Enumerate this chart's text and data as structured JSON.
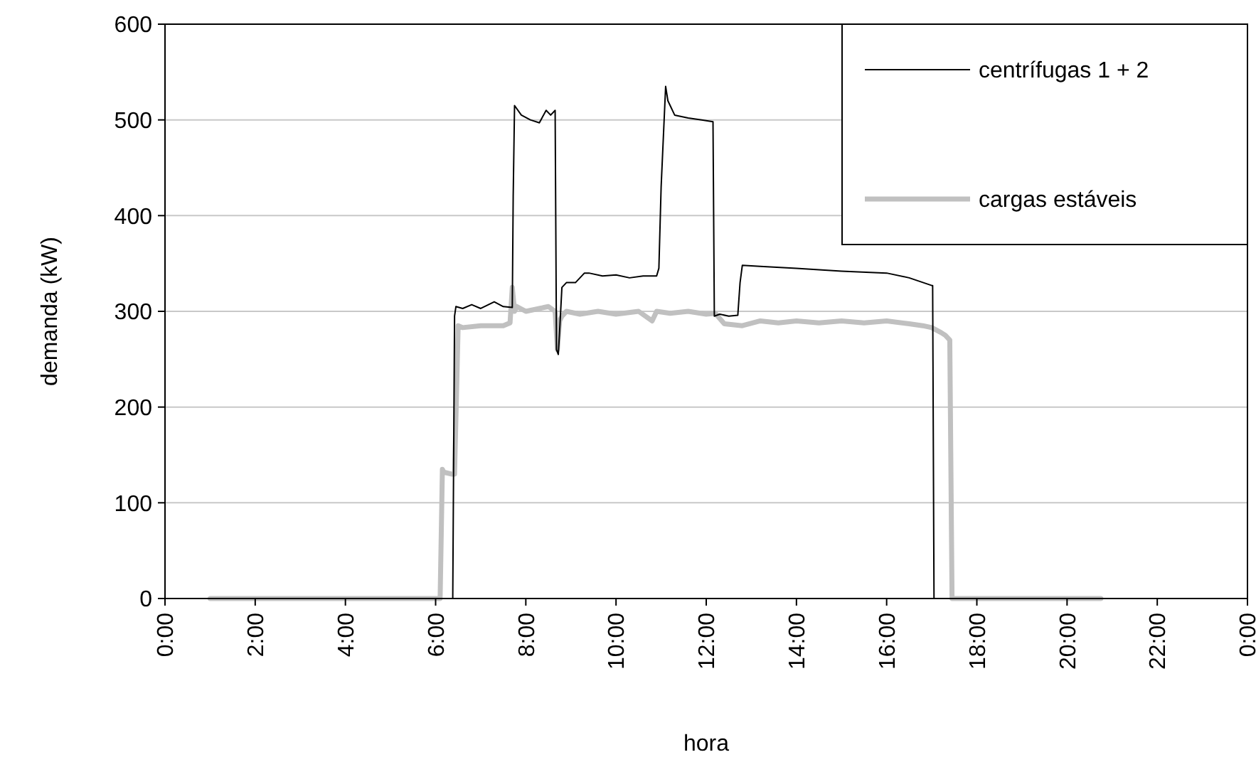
{
  "chart_data": {
    "type": "line",
    "xlabel": "hora",
    "ylabel": "demanda (kW)",
    "xlim": [
      0,
      24
    ],
    "xticks": [
      {
        "value": 0,
        "label": "0:00"
      },
      {
        "value": 2,
        "label": "2:00"
      },
      {
        "value": 4,
        "label": "4:00"
      },
      {
        "value": 6,
        "label": "6:00"
      },
      {
        "value": 8,
        "label": "8:00"
      },
      {
        "value": 10,
        "label": "10:00"
      },
      {
        "value": 12,
        "label": "12:00"
      },
      {
        "value": 14,
        "label": "14:00"
      },
      {
        "value": 16,
        "label": "16:00"
      },
      {
        "value": 18,
        "label": "18:00"
      },
      {
        "value": 20,
        "label": "20:00"
      },
      {
        "value": 22,
        "label": "22:00"
      },
      {
        "value": 24,
        "label": "0:00"
      }
    ],
    "ylim": [
      0,
      600
    ],
    "yticks": [
      0,
      100,
      200,
      300,
      400,
      500,
      600
    ],
    "grid": "y",
    "legend": "top right",
    "line_style": "solid",
    "series": [
      {
        "name": "centrífugas 1 + 2",
        "color": "#000000",
        "x": [
          1.0,
          6.38,
          6.42,
          6.45,
          6.6,
          6.8,
          7.0,
          7.3,
          7.5,
          7.7,
          7.72,
          7.75,
          7.9,
          8.1,
          8.3,
          8.45,
          8.55,
          8.65,
          8.68,
          8.72,
          8.75,
          8.8,
          8.9,
          9.1,
          9.3,
          9.4,
          9.7,
          10.0,
          10.3,
          10.6,
          10.9,
          10.95,
          11.0,
          11.1,
          11.15,
          11.3,
          11.6,
          11.9,
          12.15,
          12.18,
          12.3,
          12.5,
          12.7,
          12.75,
          12.8,
          13.2,
          14.0,
          15.0,
          16.0,
          16.5,
          17.0,
          17.02,
          17.05
        ],
        "values": [
          0,
          0,
          295,
          305,
          303,
          307,
          303,
          310,
          305,
          304,
          420,
          515,
          505,
          500,
          497,
          510,
          505,
          510,
          260,
          255,
          280,
          325,
          330,
          330,
          340,
          340,
          337,
          338,
          335,
          337,
          337,
          345,
          430,
          535,
          520,
          505,
          502,
          500,
          498,
          295,
          297,
          295,
          296,
          330,
          348,
          347,
          345,
          342,
          340,
          335,
          327,
          327,
          0
        ]
      },
      {
        "name": "cargas estáveis",
        "color": "#c0c0c0",
        "x": [
          1.0,
          2.0,
          4.0,
          6.1,
          6.15,
          6.18,
          6.35,
          6.42,
          6.5,
          6.6,
          7.0,
          7.5,
          7.65,
          7.7,
          7.75,
          7.8,
          8.0,
          8.3,
          8.5,
          8.65,
          8.7,
          8.75,
          8.8,
          8.9,
          9.2,
          9.6,
          10.0,
          10.5,
          10.8,
          10.9,
          11.2,
          11.6,
          12.0,
          12.2,
          12.4,
          12.8,
          13.2,
          13.6,
          14.0,
          14.5,
          15.0,
          15.5,
          16.0,
          16.5,
          16.8,
          17.0,
          17.2,
          17.3,
          17.4,
          17.45,
          18.0,
          19.0,
          20.0,
          20.75
        ],
        "values": [
          0,
          0,
          0,
          0,
          135,
          132,
          130,
          130,
          285,
          283,
          285,
          285,
          288,
          325,
          300,
          305,
          300,
          303,
          305,
          300,
          260,
          290,
          295,
          300,
          297,
          300,
          297,
          300,
          290,
          300,
          298,
          300,
          297,
          298,
          287,
          285,
          290,
          288,
          290,
          288,
          290,
          288,
          290,
          287,
          285,
          283,
          278,
          275,
          270,
          0,
          0,
          0,
          0,
          0
        ]
      }
    ]
  }
}
